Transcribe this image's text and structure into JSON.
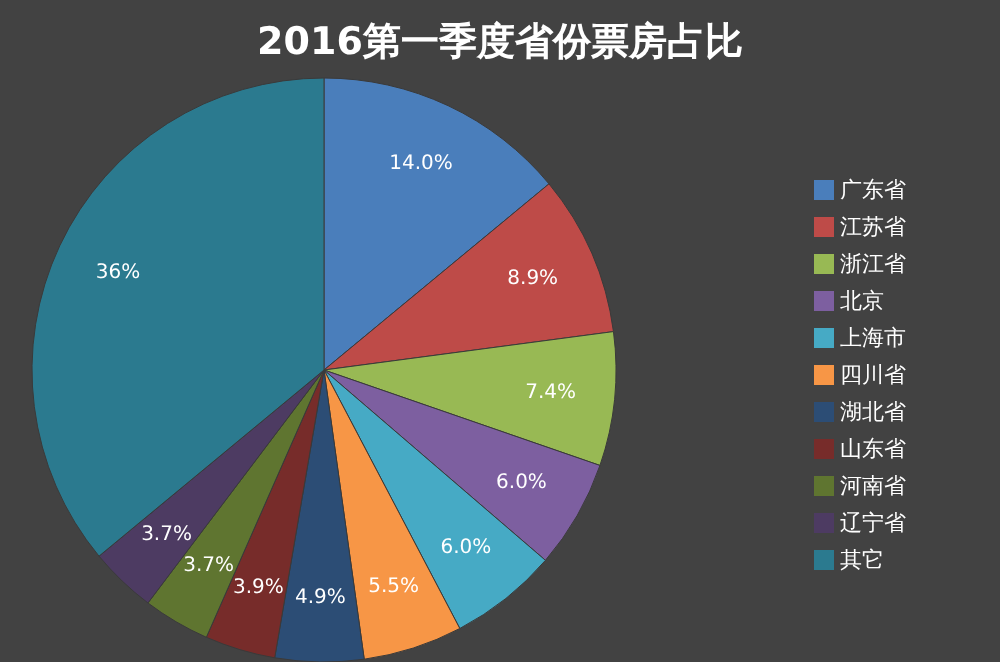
{
  "chart_data": {
    "type": "pie",
    "title": "2016第一季度省份票房占比",
    "categories": [
      "广东省",
      "江苏省",
      "浙江省",
      "北京",
      "上海市",
      "四川省",
      "湖北省",
      "山东省",
      "河南省",
      "辽宁省",
      "其它"
    ],
    "values": [
      14.0,
      8.9,
      7.4,
      6.0,
      6.0,
      5.5,
      4.9,
      3.9,
      3.7,
      3.7,
      36
    ],
    "colors": [
      "#4a7ebb",
      "#be4b48",
      "#98b954",
      "#7d5fa0",
      "#46aac5",
      "#f79646",
      "#2c4d75",
      "#772c2a",
      "#5f7530",
      "#4d3b62",
      "#2b7a8f"
    ],
    "value_labels": [
      "14.0%",
      "8.9%",
      "7.4%",
      "6.0%",
      "6.0%",
      "5.5%",
      "4.9%",
      "3.9%",
      "3.7%",
      "3.7%",
      "36%"
    ],
    "legend": "right"
  }
}
